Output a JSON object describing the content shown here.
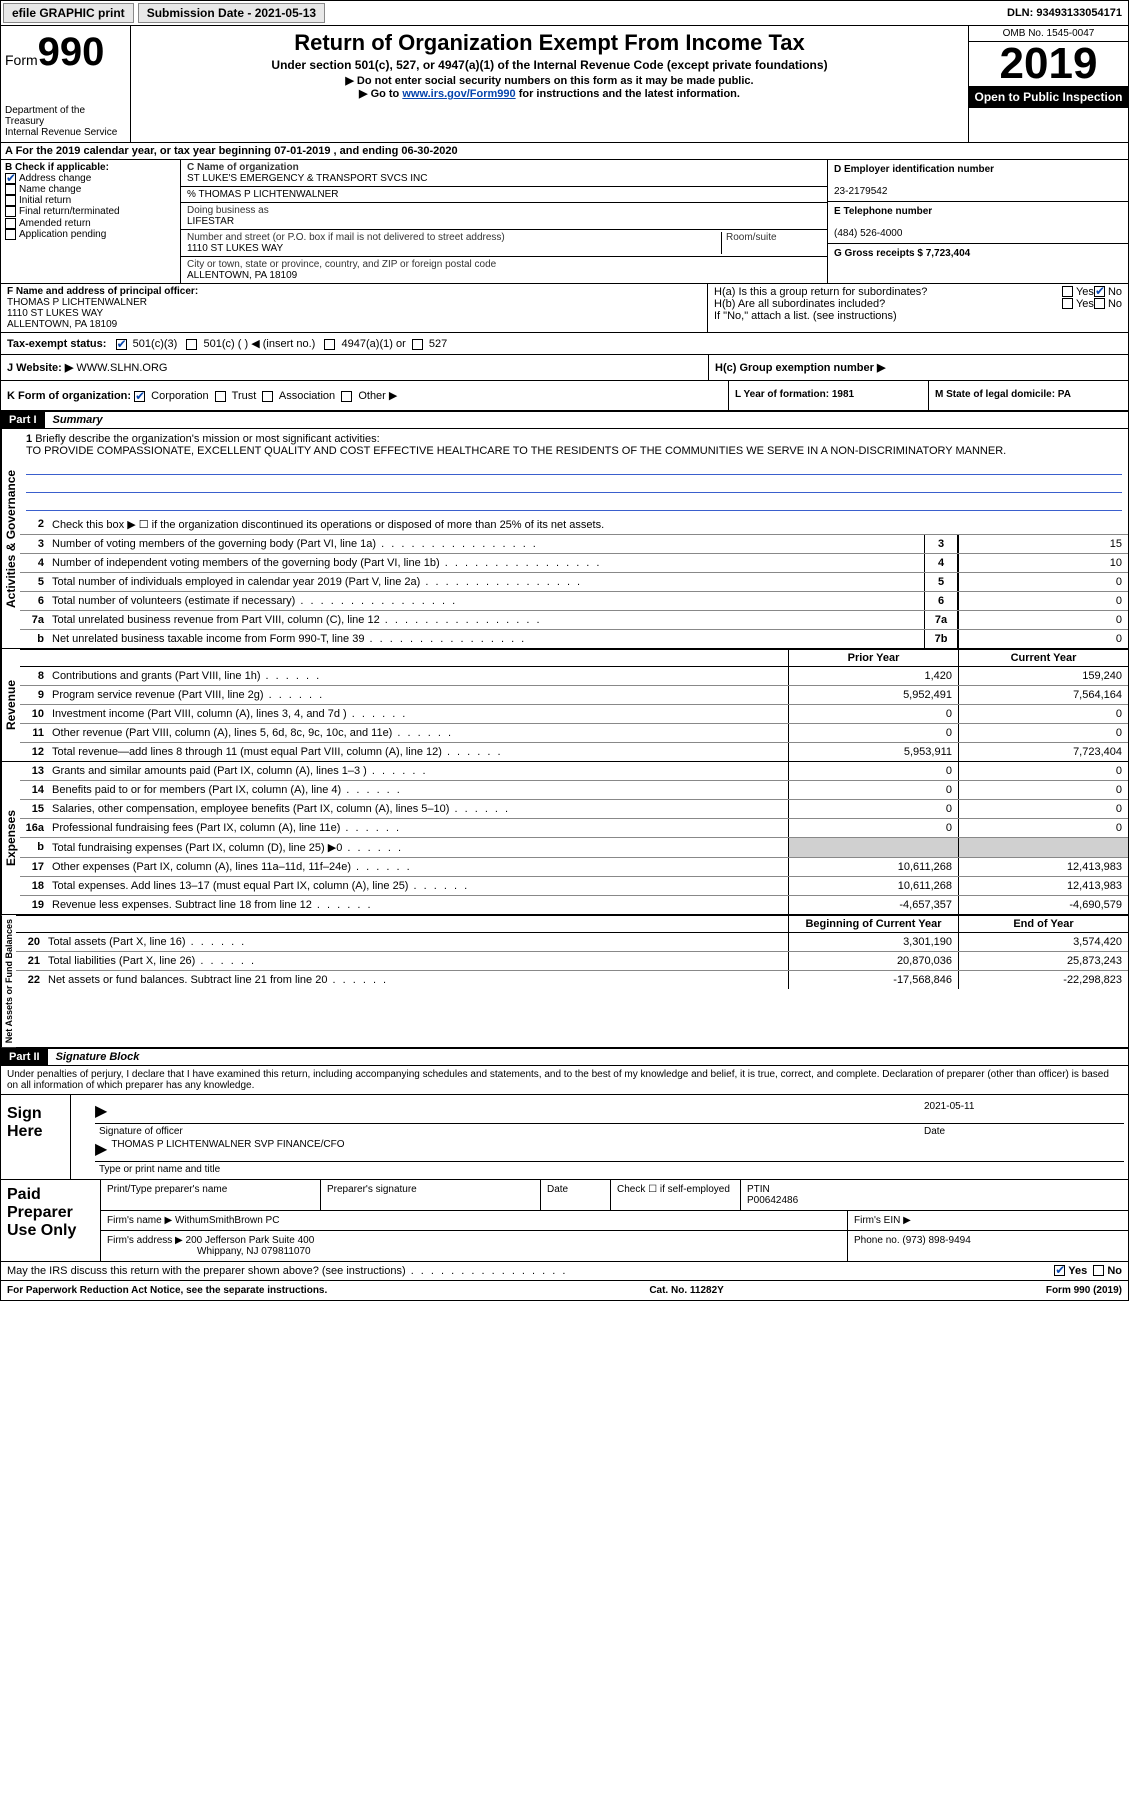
{
  "topbar": {
    "efile": "efile GRAPHIC print",
    "sub_label": "Submission Date - 2021-05-13",
    "dln": "DLN: 93493133054171"
  },
  "header": {
    "form_prefix": "Form",
    "form_num": "990",
    "title": "Return of Organization Exempt From Income Tax",
    "subtitle": "Under section 501(c), 527, or 4947(a)(1) of the Internal Revenue Code (except private foundations)",
    "note1": "▶ Do not enter social security numbers on this form as it may be made public.",
    "note2_pre": "▶ Go to ",
    "note2_link": "www.irs.gov/Form990",
    "note2_post": " for instructions and the latest information.",
    "dept": "Department of the Treasury\nInternal Revenue Service",
    "omb": "OMB No. 1545-0047",
    "year": "2019",
    "open": "Open to Public Inspection"
  },
  "line_a": "A For the 2019 calendar year, or tax year beginning 07-01-2019    , and ending 06-30-2020",
  "section_b": {
    "label": "B Check if applicable:",
    "addr_change": "Address change",
    "name_change": "Name change",
    "initial": "Initial return",
    "final": "Final return/terminated",
    "amended": "Amended return",
    "app_pending": "Application pending"
  },
  "section_c": {
    "name_lbl": "C Name of organization",
    "name": "ST LUKE'S EMERGENCY & TRANSPORT SVCS INC",
    "care_of": "% THOMAS P LICHTENWALNER",
    "dba_lbl": "Doing business as",
    "dba": "LIFESTAR",
    "addr_lbl": "Number and street (or P.O. box if mail is not delivered to street address)",
    "room_lbl": "Room/suite",
    "addr": "1110 ST LUKES WAY",
    "city_lbl": "City or town, state or province, country, and ZIP or foreign postal code",
    "city": "ALLENTOWN, PA  18109"
  },
  "section_d": {
    "lbl": "D Employer identification number",
    "val": "23-2179542"
  },
  "section_e": {
    "lbl": "E Telephone number",
    "val": "(484) 526-4000"
  },
  "section_g": {
    "lbl": "G Gross receipts $ 7,723,404"
  },
  "section_f": {
    "lbl": "F  Name and address of principal officer:",
    "name": "THOMAS P LICHTENWALNER",
    "addr1": "1110 ST LUKES WAY",
    "addr2": "ALLENTOWN, PA  18109"
  },
  "section_h": {
    "ha": "H(a)  Is this a group return for subordinates?",
    "hb": "H(b)  Are all subordinates included?",
    "hb_note": "If \"No,\" attach a list. (see instructions)",
    "hc": "H(c)  Group exemption number ▶",
    "yes": "Yes",
    "no": "No"
  },
  "section_i": {
    "lbl": "Tax-exempt status:",
    "c3": "501(c)(3)",
    "c": "501(c) (  ) ◀ (insert no.)",
    "a1": "4947(a)(1) or",
    "s527": "527"
  },
  "section_j": {
    "lbl": "J   Website: ▶",
    "val": "WWW.SLHN.ORG"
  },
  "section_k": {
    "lbl": "K Form of organization:",
    "corp": "Corporation",
    "trust": "Trust",
    "assoc": "Association",
    "other": "Other ▶"
  },
  "section_l": {
    "lbl": "L Year of formation: 1981"
  },
  "section_m": {
    "lbl": "M State of legal domicile: PA"
  },
  "part1": {
    "hdr": "Part I",
    "title": "Summary"
  },
  "mission": {
    "num": "1",
    "lbl": "Briefly describe the organization's mission or most significant activities:",
    "text": "TO PROVIDE COMPASSIONATE, EXCELLENT QUALITY AND COST EFFECTIVE HEALTHCARE TO THE RESIDENTS OF THE COMMUNITIES WE SERVE IN A NON-DISCRIMINATORY MANNER."
  },
  "sides": {
    "ag": "Activities & Governance",
    "rev": "Revenue",
    "exp": "Expenses",
    "na": "Net Assets or Fund Balances"
  },
  "lines_ag": [
    {
      "n": "2",
      "d": "Check this box ▶ ☐  if the organization discontinued its operations or disposed of more than 25% of its net assets."
    },
    {
      "n": "3",
      "d": "Number of voting members of the governing body (Part VI, line 1a)",
      "box": "3",
      "v": "15"
    },
    {
      "n": "4",
      "d": "Number of independent voting members of the governing body (Part VI, line 1b)",
      "box": "4",
      "v": "10"
    },
    {
      "n": "5",
      "d": "Total number of individuals employed in calendar year 2019 (Part V, line 2a)",
      "box": "5",
      "v": "0"
    },
    {
      "n": "6",
      "d": "Total number of volunteers (estimate if necessary)",
      "box": "6",
      "v": "0"
    },
    {
      "n": "7a",
      "d": "Total unrelated business revenue from Part VIII, column (C), line 12",
      "box": "7a",
      "v": "0"
    },
    {
      "n": "b",
      "d": "Net unrelated business taxable income from Form 990-T, line 39",
      "box": "7b",
      "v": "0"
    }
  ],
  "yr_hdr": {
    "py": "Prior Year",
    "cy": "Current Year"
  },
  "lines_rev": [
    {
      "n": "8",
      "d": "Contributions and grants (Part VIII, line 1h)",
      "py": "1,420",
      "cy": "159,240"
    },
    {
      "n": "9",
      "d": "Program service revenue (Part VIII, line 2g)",
      "py": "5,952,491",
      "cy": "7,564,164"
    },
    {
      "n": "10",
      "d": "Investment income (Part VIII, column (A), lines 3, 4, and 7d )",
      "py": "0",
      "cy": "0"
    },
    {
      "n": "11",
      "d": "Other revenue (Part VIII, column (A), lines 5, 6d, 8c, 9c, 10c, and 11e)",
      "py": "0",
      "cy": "0"
    },
    {
      "n": "12",
      "d": "Total revenue—add lines 8 through 11 (must equal Part VIII, column (A), line 12)",
      "py": "5,953,911",
      "cy": "7,723,404"
    }
  ],
  "lines_exp": [
    {
      "n": "13",
      "d": "Grants and similar amounts paid (Part IX, column (A), lines 1–3 )",
      "py": "0",
      "cy": "0"
    },
    {
      "n": "14",
      "d": "Benefits paid to or for members (Part IX, column (A), line 4)",
      "py": "0",
      "cy": "0"
    },
    {
      "n": "15",
      "d": "Salaries, other compensation, employee benefits (Part IX, column (A), lines 5–10)",
      "py": "0",
      "cy": "0"
    },
    {
      "n": "16a",
      "d": "Professional fundraising fees (Part IX, column (A), line 11e)",
      "py": "0",
      "cy": "0"
    },
    {
      "n": "b",
      "d": "Total fundraising expenses (Part IX, column (D), line 25) ▶0",
      "py": "",
      "cy": "",
      "grey": true
    },
    {
      "n": "17",
      "d": "Other expenses (Part IX, column (A), lines 11a–11d, 11f–24e)",
      "py": "10,611,268",
      "cy": "12,413,983"
    },
    {
      "n": "18",
      "d": "Total expenses. Add lines 13–17 (must equal Part IX, column (A), line 25)",
      "py": "10,611,268",
      "cy": "12,413,983"
    },
    {
      "n": "19",
      "d": "Revenue less expenses. Subtract line 18 from line 12",
      "py": "-4,657,357",
      "cy": "-4,690,579"
    }
  ],
  "yr_hdr2": {
    "py": "Beginning of Current Year",
    "cy": "End of Year"
  },
  "lines_na": [
    {
      "n": "20",
      "d": "Total assets (Part X, line 16)",
      "py": "3,301,190",
      "cy": "3,574,420"
    },
    {
      "n": "21",
      "d": "Total liabilities (Part X, line 26)",
      "py": "20,870,036",
      "cy": "25,873,243"
    },
    {
      "n": "22",
      "d": "Net assets or fund balances. Subtract line 21 from line 20",
      "py": "-17,568,846",
      "cy": "-22,298,823"
    }
  ],
  "part2": {
    "hdr": "Part II",
    "title": "Signature Block"
  },
  "penalties": "Under penalties of perjury, I declare that I have examined this return, including accompanying schedules and statements, and to the best of my knowledge and belief, it is true, correct, and complete. Declaration of preparer (other than officer) is based on all information of which preparer has any knowledge.",
  "sign": {
    "lbl": "Sign Here",
    "sig_lbl": "Signature of officer",
    "date_lbl": "Date",
    "date": "2021-05-11",
    "name": "THOMAS P LICHTENWALNER  SVP FINANCE/CFO",
    "name_lbl": "Type or print name and title"
  },
  "paid": {
    "lbl": "Paid Preparer Use Only",
    "h1": "Print/Type preparer's name",
    "h2": "Preparer's signature",
    "h3": "Date",
    "h4_pre": "Check ☐ if self-employed",
    "h5": "PTIN",
    "ptin": "P00642486",
    "firm_name_lbl": "Firm's name    ▶",
    "firm_name": "WithumSmithBrown PC",
    "firm_ein_lbl": "Firm's EIN ▶",
    "firm_addr_lbl": "Firm's address ▶",
    "firm_addr1": "200 Jefferson Park Suite 400",
    "firm_addr2": "Whippany, NJ  079811070",
    "phone_lbl": "Phone no. (973) 898-9494"
  },
  "discuss": {
    "q": "May the IRS discuss this return with the preparer shown above? (see instructions)",
    "yes": "Yes",
    "no": "No"
  },
  "footer": {
    "l": "For Paperwork Reduction Act Notice, see the separate instructions.",
    "c": "Cat. No. 11282Y",
    "r": "Form 990 (2019)"
  }
}
